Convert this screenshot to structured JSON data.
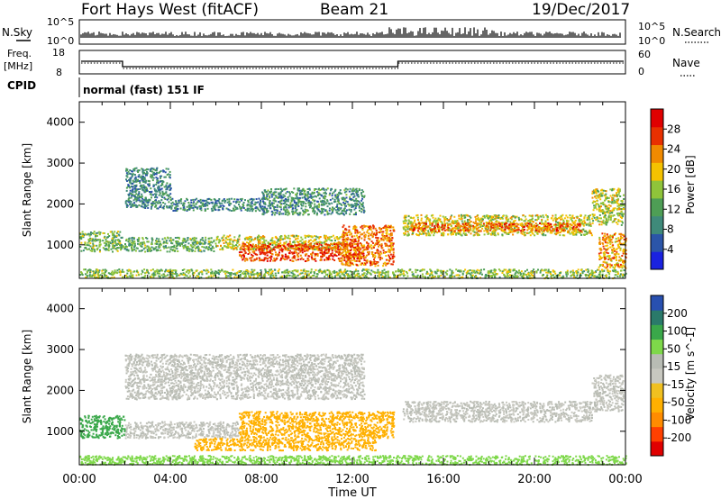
{
  "header": {
    "station": "Fort Hays West (fitACF)",
    "beam": "Beam 21",
    "date": "19/Dec/2017"
  },
  "labels": {
    "nsky": "N.Sky",
    "nsearch": "N.Search",
    "freq_line1": "Freq.",
    "freq_line2": "[MHz]",
    "nave": "Nave",
    "cpid": "CPID",
    "cpid_value": "normal (fast) 151 IF",
    "noise_left_top": "10^5",
    "noise_left_bottom": "10^0",
    "noise_right_top": "10^5",
    "noise_right_bottom": "10^0",
    "freq_left_top": "18",
    "freq_left_bottom": "8",
    "nave_right_top": "60",
    "nave_right_bottom": "0",
    "power_ylabel": "Slant Range [km]",
    "velocity_ylabel": "Slant Range [km]",
    "power_cbar_label": "Power [dB]",
    "velocity_cbar_label": "Velocity [m s^-1]",
    "xlabel": "Time UT"
  },
  "colors": {
    "power_scale": [
      "#1a22e0",
      "#2b55a8",
      "#3f8a7a",
      "#4e9e55",
      "#8fc43a",
      "#f4c200",
      "#f08a00",
      "#e83000",
      "#e00000"
    ],
    "velocity_scale": [
      "#e00000",
      "#ff4000",
      "#ff8c00",
      "#ffb000",
      "#f0c020",
      "#c8c8c0",
      "#b8bcb4",
      "#7ed84a",
      "#3aa84a",
      "#2a7a6a",
      "#2850b0"
    ]
  },
  "chart_data": [
    {
      "type": "heatmap",
      "name": "power",
      "x_range_hours": [
        0,
        24
      ],
      "y_range_km": [
        180,
        4500
      ],
      "xticks": [
        "00:00",
        "04:00",
        "08:00",
        "12:00",
        "16:00",
        "20:00",
        "00:00"
      ],
      "yticks": [
        1000,
        2000,
        3000,
        4000
      ],
      "colorbar_ticks": [
        4,
        8,
        12,
        16,
        20,
        24,
        28
      ],
      "colorbar_range": [
        0,
        32
      ],
      "regions": [
        {
          "t": [
            0.0,
            1.8
          ],
          "r": [
            850,
            1350
          ],
          "value": 14
        },
        {
          "t": [
            1.8,
            6.0
          ],
          "r": [
            850,
            1200
          ],
          "value": 13
        },
        {
          "t": [
            6.0,
            11.5
          ],
          "r": [
            900,
            1250
          ],
          "value": 18
        },
        {
          "t": [
            7.0,
            12.5
          ],
          "r": [
            620,
            1050
          ],
          "value": 26
        },
        {
          "t": [
            11.5,
            13.8
          ],
          "r": [
            500,
            1500
          ],
          "value": 24
        },
        {
          "t": [
            2.0,
            4.0
          ],
          "r": [
            1900,
            2900
          ],
          "value": 9
        },
        {
          "t": [
            4.0,
            8.0
          ],
          "r": [
            1850,
            2150
          ],
          "value": 9
        },
        {
          "t": [
            8.0,
            12.5
          ],
          "r": [
            1750,
            2400
          ],
          "value": 10
        },
        {
          "t": [
            14.2,
            22.5
          ],
          "r": [
            1250,
            1750
          ],
          "value": 18
        },
        {
          "t": [
            14.5,
            22.0
          ],
          "r": [
            1350,
            1550
          ],
          "value": 25
        },
        {
          "t": [
            22.5,
            23.9
          ],
          "r": [
            1500,
            2400
          ],
          "value": 17
        },
        {
          "t": [
            0.0,
            24.0
          ],
          "r": [
            200,
            420
          ],
          "value": 15
        },
        {
          "t": [
            22.8,
            24.0
          ],
          "r": [
            450,
            1300
          ],
          "value": 22
        }
      ]
    },
    {
      "type": "heatmap",
      "name": "velocity",
      "x_range_hours": [
        0,
        24
      ],
      "y_range_km": [
        180,
        4500
      ],
      "xticks": [
        "00:00",
        "04:00",
        "08:00",
        "12:00",
        "16:00",
        "20:00",
        "00:00"
      ],
      "yticks": [
        1000,
        2000,
        3000,
        4000
      ],
      "colorbar_ticks": [
        200,
        100,
        50,
        15,
        -15,
        -50,
        -100,
        -200
      ],
      "regions": [
        {
          "t": [
            0.0,
            2.0
          ],
          "r": [
            850,
            1400
          ],
          "value": 60
        },
        {
          "t": [
            2.0,
            7.0
          ],
          "r": [
            850,
            1250
          ],
          "value": 0
        },
        {
          "t": [
            7.0,
            13.8
          ],
          "r": [
            850,
            1500
          ],
          "value": -30
        },
        {
          "t": [
            5.0,
            13.0
          ],
          "r": [
            550,
            850
          ],
          "value": -40
        },
        {
          "t": [
            2.0,
            12.5
          ],
          "r": [
            1800,
            2900
          ],
          "value": 0
        },
        {
          "t": [
            14.2,
            22.5
          ],
          "r": [
            1250,
            1750
          ],
          "value": 0
        },
        {
          "t": [
            22.5,
            23.9
          ],
          "r": [
            1500,
            2400
          ],
          "value": 0
        },
        {
          "t": [
            0.0,
            24.0
          ],
          "r": [
            200,
            420
          ],
          "value": 30
        }
      ]
    }
  ]
}
